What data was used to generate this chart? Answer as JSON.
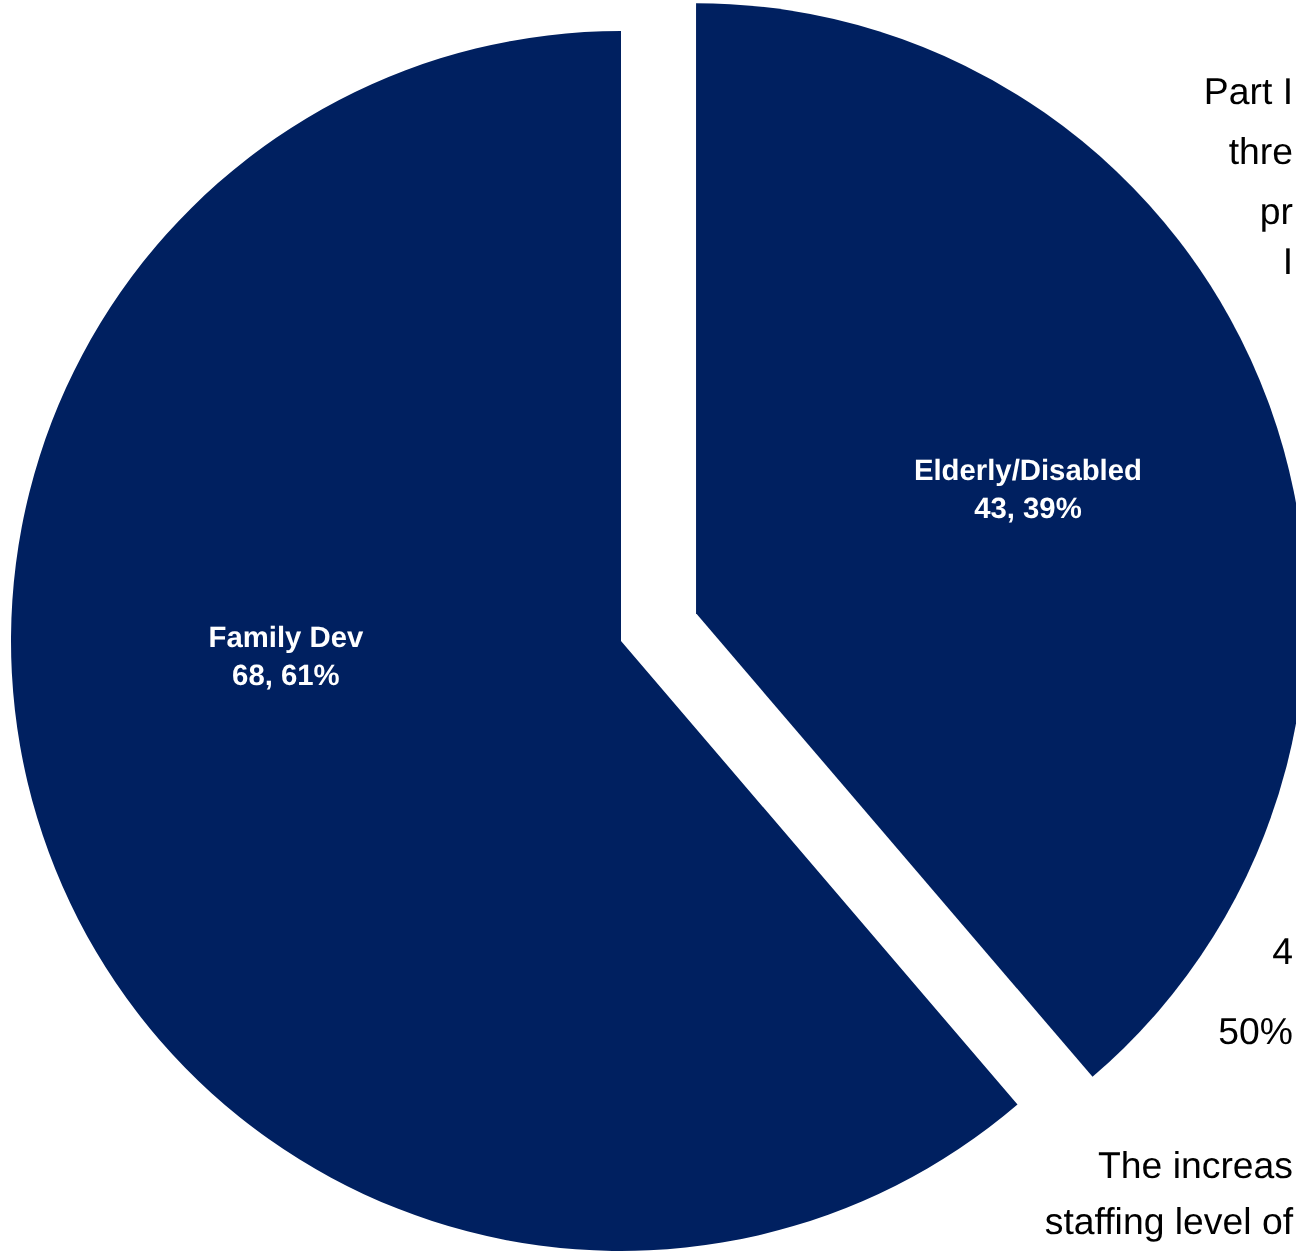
{
  "chart_data": {
    "type": "pie",
    "categories": [
      "Elderly/Disabled",
      "Family Dev"
    ],
    "values": [
      43,
      68
    ],
    "colors": [
      "#002060",
      "#002060"
    ],
    "value_labels": [
      "43, 39%",
      "68, 61%"
    ],
    "annotations": [
      "Part I",
      "thre",
      "pr",
      "I",
      "4",
      "50%",
      "The increas",
      "staffing level of"
    ]
  }
}
